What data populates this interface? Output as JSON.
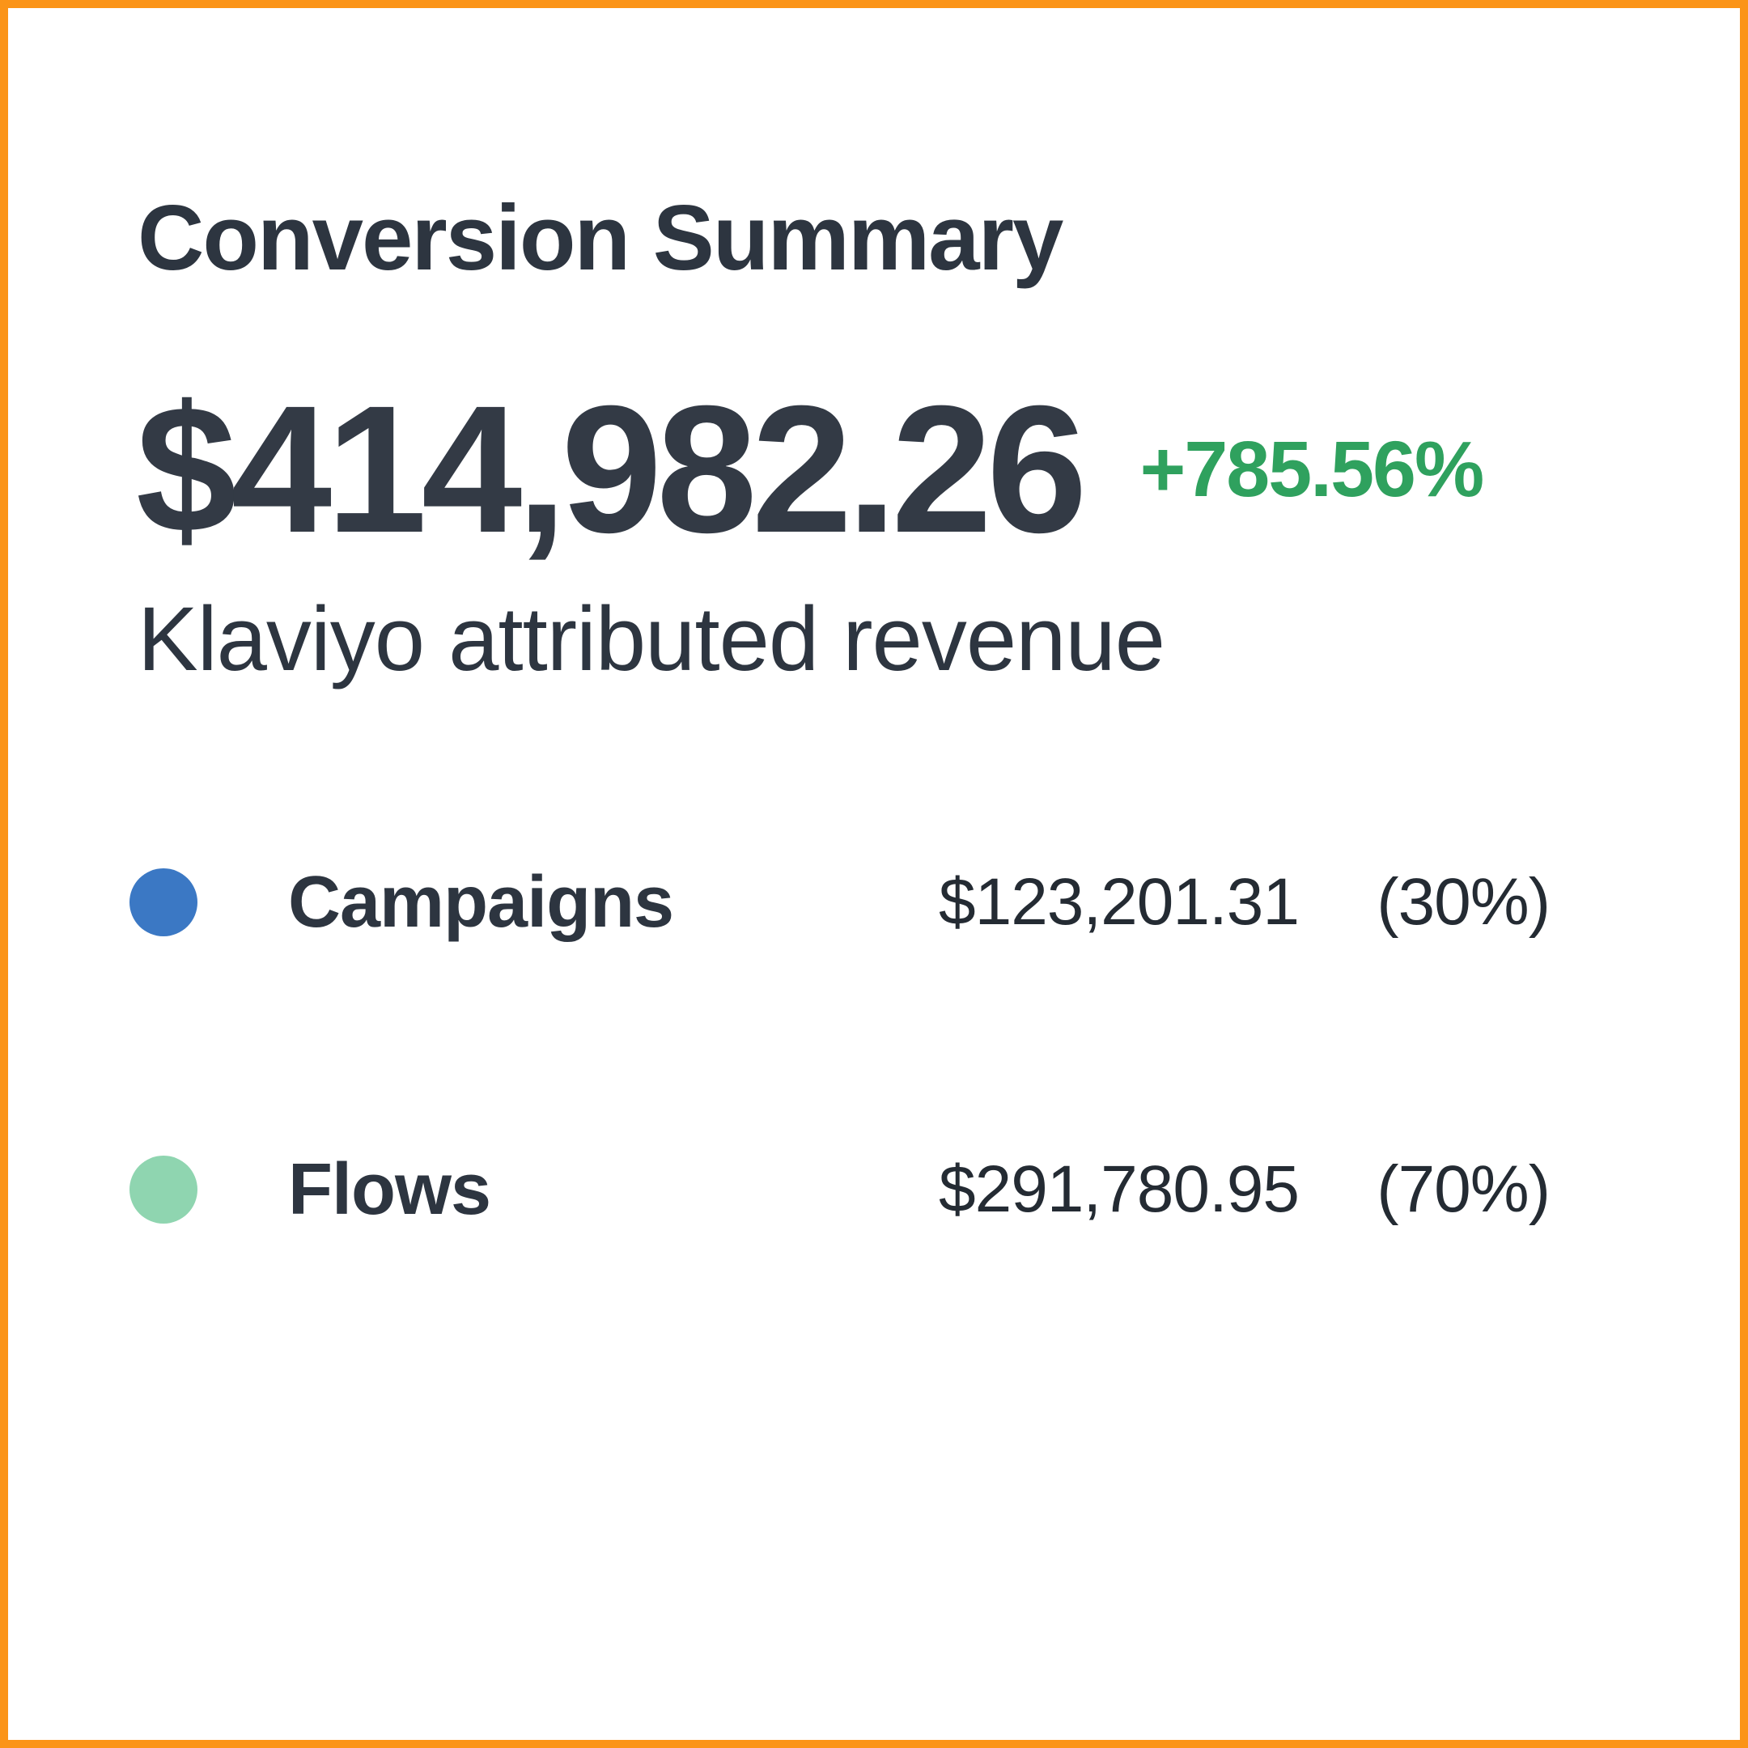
{
  "card": {
    "title": "Conversion Summary",
    "total_value": "$414,982.26",
    "delta": "+785.56%",
    "subtitle": "Klaviyo attributed revenue",
    "legend": [
      {
        "label": "Campaigns",
        "amount": "$123,201.31",
        "percent": "(30%)",
        "color": "#3b78c4"
      },
      {
        "label": "Flows",
        "amount": "$291,780.95",
        "percent": "(70%)",
        "color": "#8fd5b0"
      }
    ]
  },
  "colors": {
    "frame_border": "#fb9418",
    "heading_text": "#2d3540",
    "total_value_text": "#333a45",
    "delta_positive": "#2fa15e",
    "amount_text": "#242b33",
    "background": "#ffffff",
    "campaigns_dot": "#3b78c4",
    "flows_dot": "#8fd5b0"
  }
}
